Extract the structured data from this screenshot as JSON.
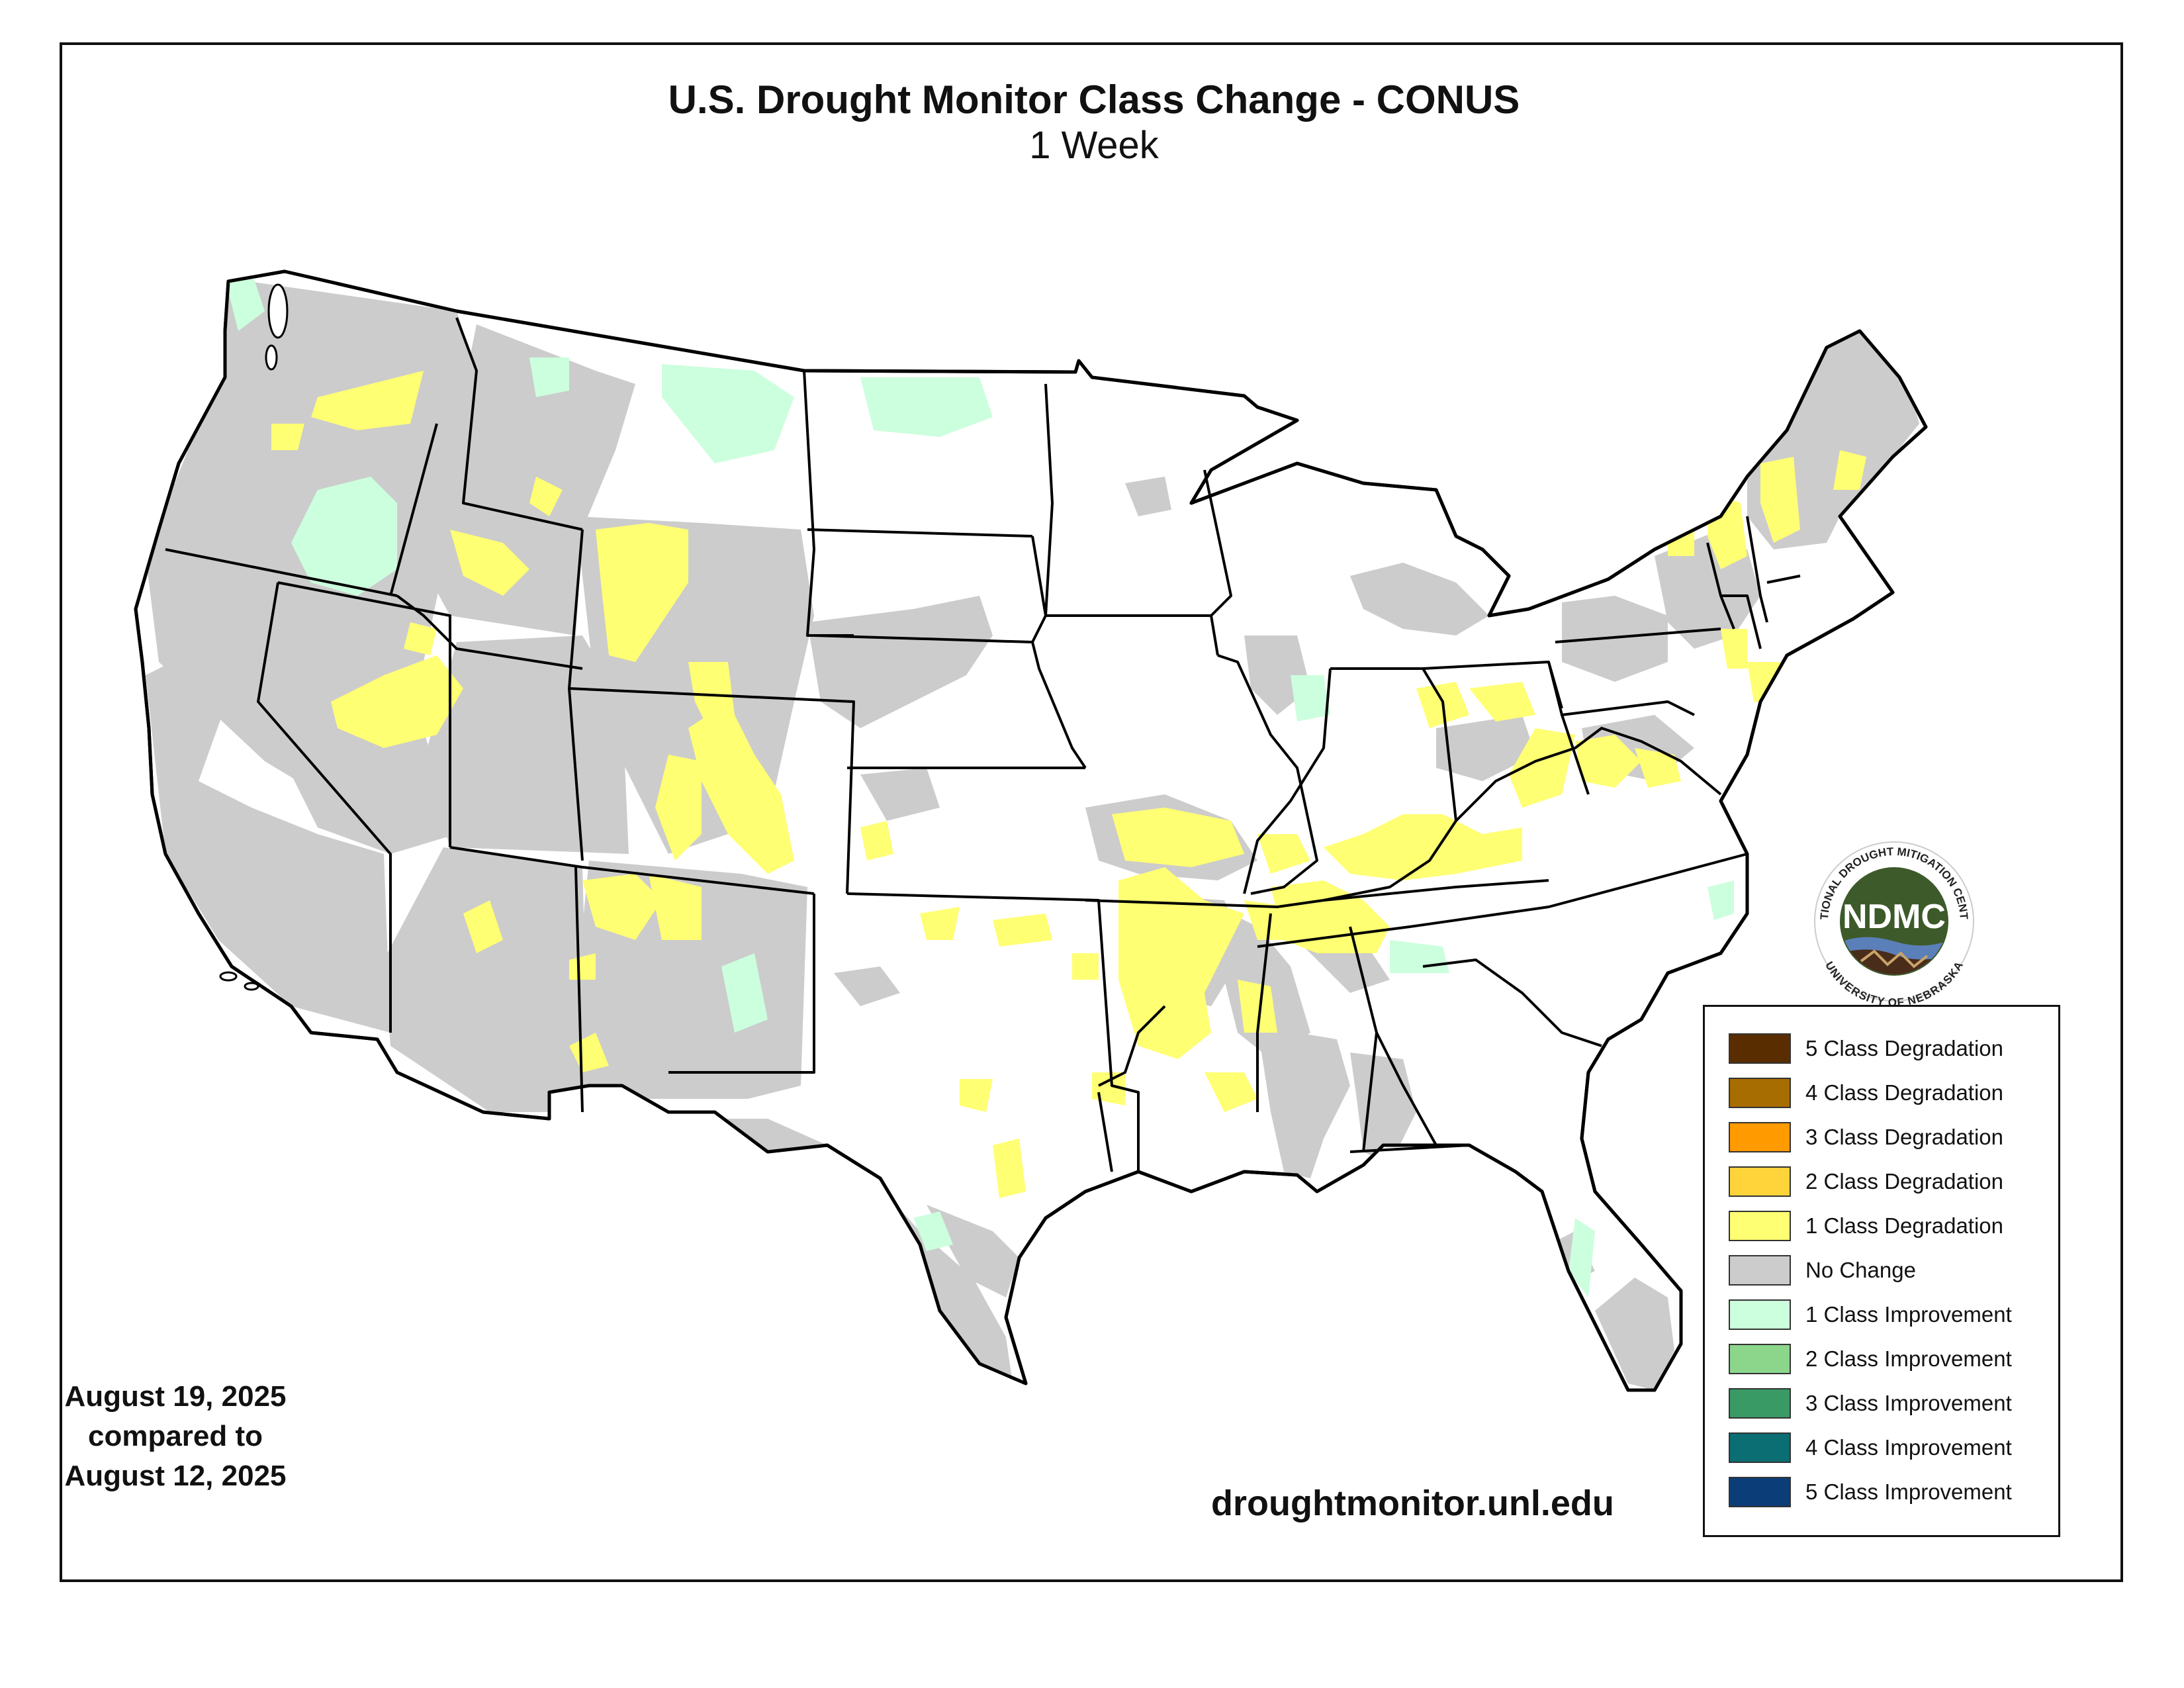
{
  "title": "U.S. Drought Monitor Class Change - CONUS",
  "subtitle": "1 Week",
  "date_current": "August 19, 2025",
  "date_compared_label": "compared to",
  "date_previous": "August 12, 2025",
  "website": "droughtmonitor.unl.edu",
  "logo": {
    "text": "NDMC",
    "ring_top": "NATIONAL DROUGHT MITIGATION CENTER",
    "ring_bottom": "UNIVERSITY OF NEBRASKA"
  },
  "legend": [
    {
      "label": "5 Class Degradation",
      "color": "#5a2d00"
    },
    {
      "label": "4 Class Degradation",
      "color": "#a86d00"
    },
    {
      "label": "3 Class Degradation",
      "color": "#ff9a00"
    },
    {
      "label": "2 Class Degradation",
      "color": "#ffd43b"
    },
    {
      "label": "1 Class Degradation",
      "color": "#ffff73"
    },
    {
      "label": "No Change",
      "color": "#cccccc"
    },
    {
      "label": "1 Class Improvement",
      "color": "#ccffdd"
    },
    {
      "label": "2 Class Improvement",
      "color": "#8cd68c"
    },
    {
      "label": "3 Class Improvement",
      "color": "#3a9a66"
    },
    {
      "label": "4 Class Improvement",
      "color": "#0b6e73"
    },
    {
      "label": "5 Class Improvement",
      "color": "#0b3d79"
    }
  ]
}
